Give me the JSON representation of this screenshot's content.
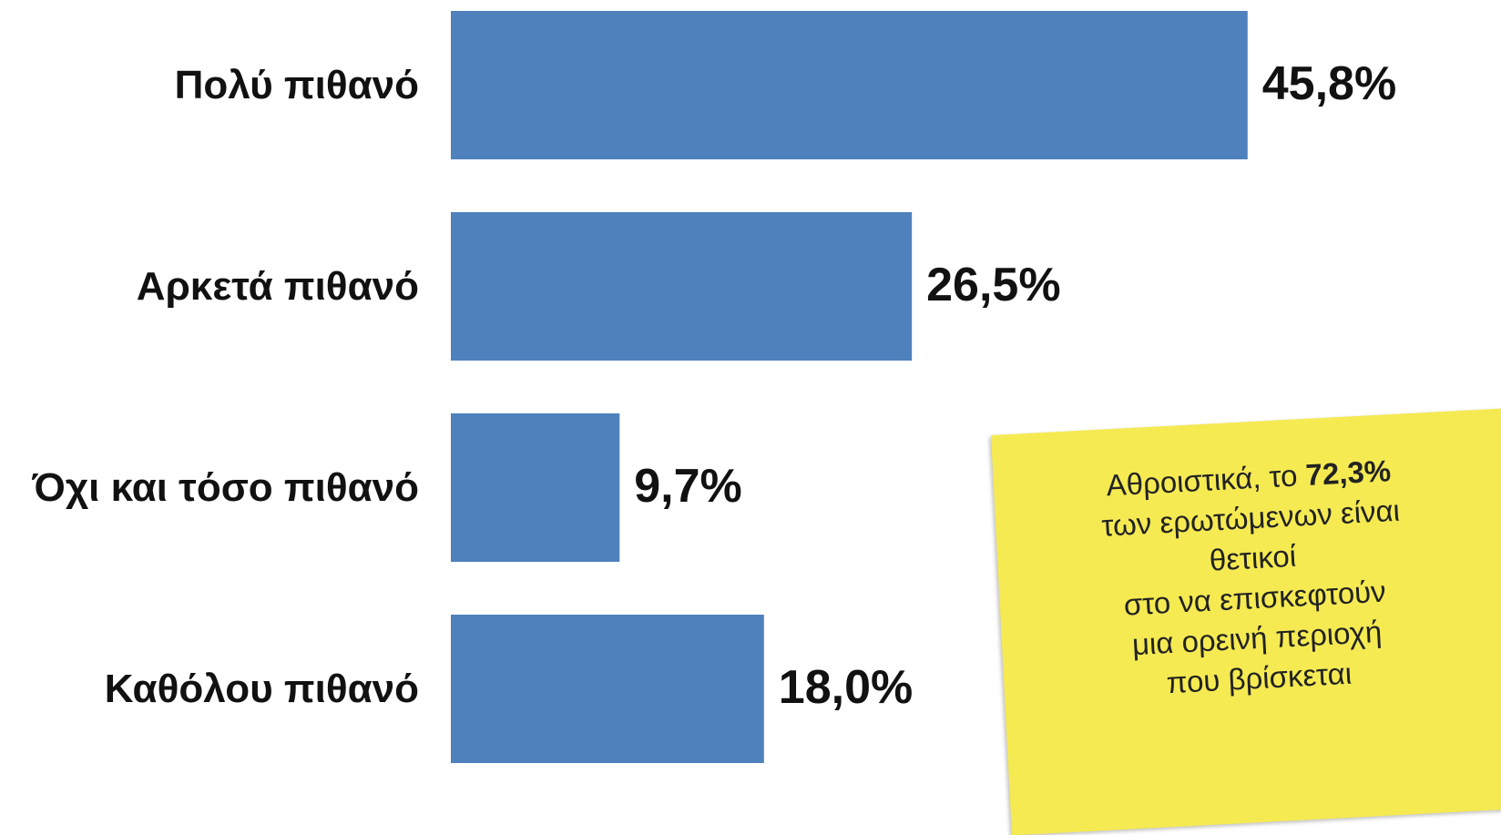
{
  "chart_data": {
    "type": "barh",
    "categories": [
      "Πολύ πιθανό",
      "Αρκετά πιθανό",
      "Όχι και τόσο πιθανό",
      "Καθόλου πιθανό"
    ],
    "values": [
      45.8,
      26.5,
      9.7,
      18.0
    ],
    "value_labels": [
      "45,8%",
      "26,5%",
      "9,7%",
      "18,0%"
    ],
    "color": "#4f81bd",
    "xlim": [
      0,
      50
    ],
    "annotation": {
      "lead": "Αθροιστικά, το",
      "highlight": "72,3%",
      "lines": [
        "των ερωτώμενων είναι",
        "θετικοί",
        "στο να επισκεφτούν",
        "μια ορεινή περιοχή",
        "που βρίσκεται"
      ],
      "color": "#f5ea52"
    }
  }
}
